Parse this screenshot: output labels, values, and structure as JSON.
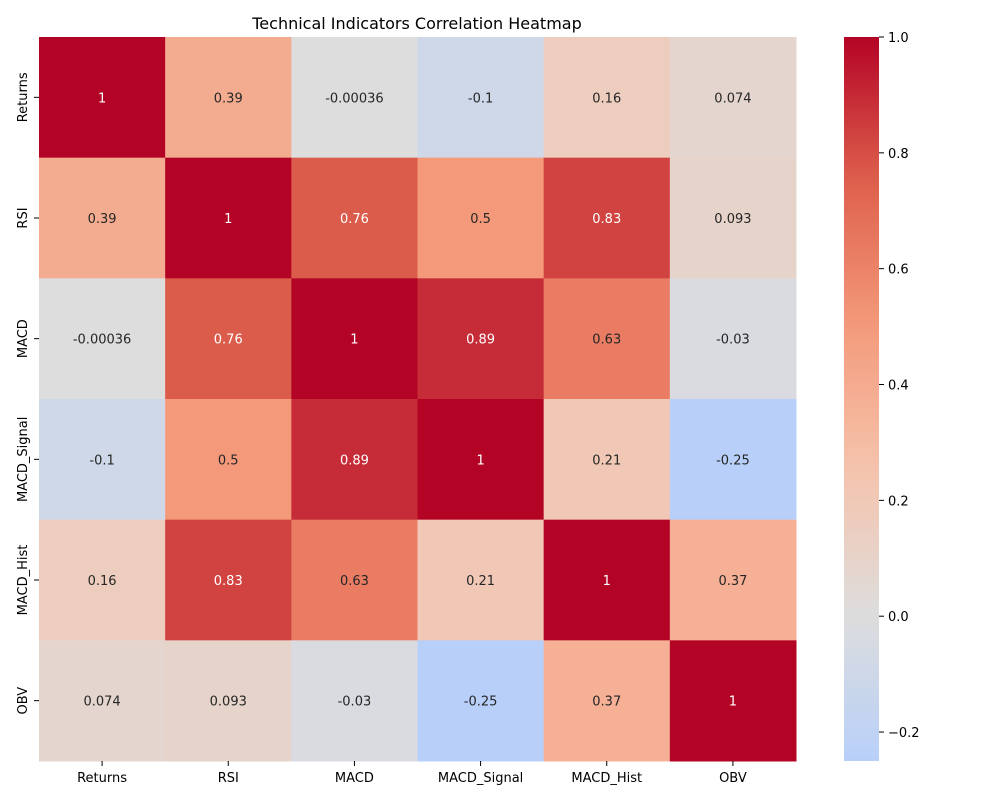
{
  "chart_data": {
    "type": "heatmap",
    "title": "Technical Indicators Correlation Heatmap",
    "xlabel": "",
    "ylabel": "",
    "x_categories": [
      "Returns",
      "RSI",
      "MACD",
      "MACD_Signal",
      "MACD_Hist",
      "OBV"
    ],
    "y_categories": [
      "Returns",
      "RSI",
      "MACD",
      "MACD_Signal",
      "MACD_Hist",
      "OBV"
    ],
    "values": [
      [
        1,
        0.39,
        -0.00036,
        -0.1,
        0.16,
        0.074
      ],
      [
        0.39,
        1,
        0.76,
        0.5,
        0.83,
        0.093
      ],
      [
        -0.00036,
        0.76,
        1,
        0.89,
        0.63,
        -0.03
      ],
      [
        -0.1,
        0.5,
        0.89,
        1,
        0.21,
        -0.25
      ],
      [
        0.16,
        0.83,
        0.63,
        0.21,
        1,
        0.37
      ],
      [
        0.074,
        0.093,
        -0.03,
        -0.25,
        0.37,
        1
      ]
    ],
    "cell_labels": [
      [
        "1",
        "0.39",
        "-0.00036",
        "-0.1",
        "0.16",
        "0.074"
      ],
      [
        "0.39",
        "1",
        "0.76",
        "0.5",
        "0.83",
        "0.093"
      ],
      [
        "-0.00036",
        "0.76",
        "1",
        "0.89",
        "0.63",
        "-0.03"
      ],
      [
        "-0.1",
        "0.5",
        "0.89",
        "1",
        "0.21",
        "-0.25"
      ],
      [
        "0.16",
        "0.83",
        "0.63",
        "0.21",
        "1",
        "0.37"
      ],
      [
        "0.074",
        "0.093",
        "-0.03",
        "-0.25",
        "0.37",
        "1"
      ]
    ],
    "colormap": "coolwarm",
    "colormap_center": 0,
    "colorbar_range": [
      -0.25,
      1.0
    ],
    "colorbar_ticks": [
      -0.2,
      0.0,
      0.2,
      0.4,
      0.6,
      0.8,
      1.0
    ],
    "colorbar_tick_labels": [
      "−0.2",
      "0.0",
      "0.2",
      "0.4",
      "0.6",
      "0.8",
      "1.0"
    ],
    "grid": false,
    "colorbar_position": "right"
  }
}
